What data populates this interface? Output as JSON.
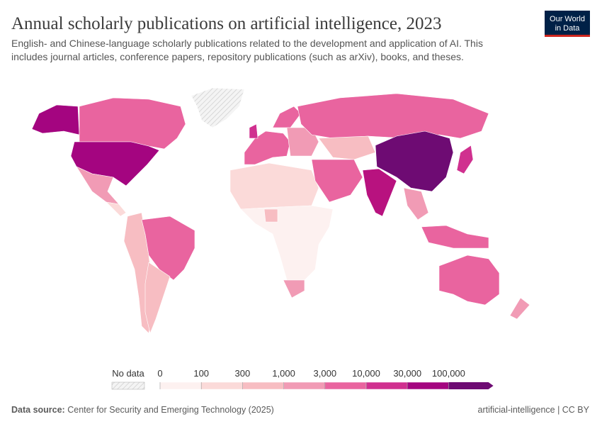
{
  "header": {
    "title": "Annual scholarly publications on artificial intelligence, 2023",
    "subtitle_lines": [
      "English- and Chinese-language scholarly publications related to the development and application of AI. This",
      "includes journal articles, conference papers, repository publications (such as arXiv), books, and theses."
    ],
    "logo_lines": [
      "Our World",
      "in Data"
    ]
  },
  "legend": {
    "no_data_label": "No data",
    "ticks": [
      0,
      100,
      300,
      {
        "value": 1000,
        "label": "1,000"
      },
      {
        "value": 3000,
        "label": "3,000"
      },
      {
        "value": 10000,
        "label": "10,000"
      },
      {
        "value": 30000,
        "label": "30,000"
      },
      {
        "value": 100000,
        "label": "100,000"
      }
    ],
    "colors": [
      "#fdf1f0",
      "#fbdad9",
      "#f7bdc2",
      "#f19bb5",
      "#e9649f",
      "#d0308f",
      "#a40580",
      "#6e0b73"
    ]
  },
  "footer": {
    "source_label": "Data source:",
    "source": "Center for Security and Emerging Technology (2025)",
    "right": "artificial-intelligence | CC BY"
  }
}
